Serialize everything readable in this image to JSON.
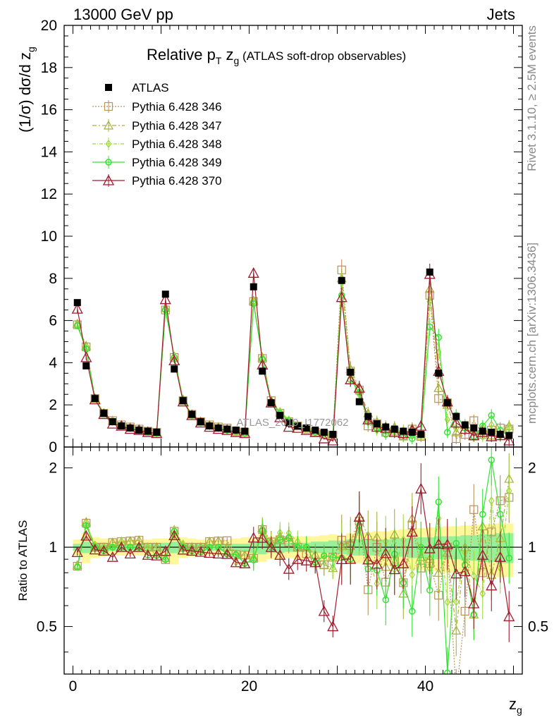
{
  "header": {
    "left": "13000 GeV pp",
    "right": "Jets"
  },
  "side": {
    "rivet": "Rivet 3.1.10, ≥ 2.5M events",
    "mcplots": "mcplots.cern.ch [arXiv:1306.3436]"
  },
  "watermark": "ATLAS_2019_I1772062",
  "colors": {
    "ATLAS": "#000000",
    "346": "#b8935a",
    "347": "#a6b03a",
    "348": "#a0d83a",
    "349": "#36e236",
    "370": "#a01c2e",
    "band_outer": "#fff799",
    "band_inner": "#99f099"
  },
  "chart_data": [
    {
      "type": "scatter",
      "title": {
        "main": "Relative p",
        "sub1": "T",
        "mid": " z",
        "sub2": "g",
        "rest": " (ATLAS soft-drop observables)"
      },
      "ylabel": "(1/σ) dσ/d z",
      "ylabel_sub": "g",
      "xlim": [
        -1,
        51
      ],
      "ylim": [
        0,
        20
      ],
      "yticks": [
        "0",
        "2",
        "4",
        "6",
        "8",
        "10",
        "12",
        "14",
        "16",
        "18",
        "20"
      ],
      "x": [
        0.5,
        1.5,
        2.5,
        3.5,
        4.5,
        5.5,
        6.5,
        7.5,
        8.5,
        9.5,
        10.5,
        11.5,
        12.5,
        13.5,
        14.5,
        15.5,
        16.5,
        17.5,
        18.5,
        19.5,
        20.5,
        21.5,
        22.5,
        23.5,
        24.5,
        25.5,
        26.5,
        27.5,
        28.5,
        29.5,
        30.5,
        31.5,
        32.5,
        33.5,
        34.5,
        35.5,
        36.5,
        37.5,
        38.5,
        39.5,
        40.5,
        41.5,
        42.5,
        43.5,
        44.5,
        45.5,
        46.5,
        47.5,
        48.5,
        49.5
      ],
      "series": [
        {
          "name": "ATLAS",
          "key": "ATLAS",
          "values": [
            6.85,
            3.85,
            2.3,
            1.6,
            1.2,
            1.0,
            0.9,
            0.8,
            0.75,
            0.7,
            7.25,
            3.7,
            2.2,
            1.55,
            1.2,
            1.0,
            0.9,
            0.85,
            0.8,
            0.75,
            7.6,
            3.6,
            2.1,
            1.5,
            1.15,
            1.0,
            0.9,
            0.8,
            0.7,
            0.6,
            7.9,
            3.55,
            2.15,
            1.45,
            1.1,
            0.95,
            0.85,
            0.75,
            0.7,
            0.6,
            8.3,
            3.5,
            2.1,
            1.45,
            1.05,
            0.9,
            0.75,
            0.7,
            0.6,
            0.55
          ]
        },
        {
          "name": "Pythia 6.428 346",
          "key": "346",
          "values": [
            5.8,
            4.75,
            2.3,
            1.6,
            1.25,
            1.05,
            0.95,
            0.85,
            0.75,
            0.7,
            6.5,
            4.25,
            2.2,
            1.55,
            1.2,
            1.05,
            0.95,
            0.9,
            0.75,
            0.7,
            6.9,
            4.2,
            2.2,
            1.6,
            1.2,
            1.0,
            0.85,
            0.7,
            0.6,
            0.55,
            8.4,
            3.6,
            2.7,
            1.0,
            1.1,
            0.7,
            0.75,
            0.55,
            0.85,
            0.5,
            7.2,
            2.3,
            2.1,
            0.4,
            0.6,
            1.25,
            0.6,
            0.8,
            0.9,
            0.85
          ]
        },
        {
          "name": "Pythia 6.428 347",
          "key": "347",
          "values": [
            5.85,
            4.8,
            2.3,
            1.6,
            1.25,
            1.05,
            0.95,
            0.85,
            0.75,
            0.7,
            6.6,
            4.3,
            2.25,
            1.55,
            1.2,
            1.05,
            0.95,
            0.85,
            0.75,
            0.7,
            6.95,
            4.25,
            2.2,
            1.65,
            1.25,
            1.0,
            0.9,
            0.75,
            0.6,
            0.5,
            8.0,
            3.7,
            2.8,
            1.6,
            1.2,
            0.8,
            0.95,
            0.5,
            0.9,
            0.55,
            7.5,
            2.8,
            2.0,
            0.7,
            1.05,
            0.5,
            0.9,
            0.55,
            0.65,
            1.0
          ]
        },
        {
          "name": "Pythia 6.428 348",
          "key": "348",
          "values": [
            5.8,
            4.7,
            2.35,
            1.6,
            1.2,
            1.05,
            0.9,
            0.8,
            0.75,
            0.65,
            6.6,
            4.3,
            2.25,
            1.5,
            1.15,
            1.0,
            0.9,
            0.8,
            0.7,
            0.65,
            6.9,
            4.2,
            2.15,
            1.7,
            1.3,
            1.05,
            0.9,
            0.7,
            0.65,
            0.5,
            7.8,
            3.4,
            2.5,
            1.3,
            0.8,
            1.0,
            0.7,
            0.8,
            0.55,
            0.6,
            6.9,
            4.5,
            1.3,
            0.9,
            1.0,
            0.7,
            0.5,
            1.05,
            0.5,
            0.9
          ]
        },
        {
          "name": "Pythia 6.428 349",
          "key": "349",
          "values": [
            5.75,
            4.65,
            2.3,
            1.55,
            1.2,
            1.0,
            0.9,
            0.8,
            0.7,
            0.65,
            6.5,
            4.25,
            2.2,
            1.5,
            1.15,
            1.0,
            0.9,
            0.8,
            0.75,
            0.65,
            6.8,
            4.15,
            2.1,
            1.6,
            1.25,
            1.0,
            0.9,
            0.7,
            0.65,
            0.55,
            7.2,
            3.2,
            2.6,
            1.2,
            0.9,
            0.6,
            0.8,
            0.55,
            0.4,
            0.6,
            5.7,
            5.2,
            0.7,
            1.5,
            0.9,
            0.5,
            1.0,
            1.5,
            0.8,
            0.5
          ]
        },
        {
          "name": "Pythia 6.428 370",
          "key": "370",
          "values": [
            6.55,
            4.25,
            2.25,
            1.55,
            1.1,
            1.0,
            0.85,
            0.8,
            0.7,
            0.65,
            7.0,
            4.1,
            2.15,
            1.5,
            1.15,
            0.95,
            0.85,
            0.8,
            0.7,
            0.65,
            8.25,
            3.9,
            2.1,
            1.4,
            0.95,
            0.9,
            0.8,
            0.7,
            0.4,
            0.3,
            7.1,
            3.2,
            2.8,
            1.3,
            0.95,
            0.9,
            0.7,
            0.65,
            0.8,
            1.0,
            8.2,
            3.6,
            2.15,
            1.15,
            0.85,
            0.55,
            0.7,
            0.5,
            0.55,
            0.3
          ]
        }
      ]
    },
    {
      "type": "scatter",
      "ylabel": "Ratio to ATLAS",
      "xlabel": "z",
      "xlabel_sub": "g",
      "xlim": [
        -1,
        51
      ],
      "ylim": [
        0.33,
        2.4
      ],
      "log_y": true,
      "yticks": [
        "0.5",
        "1",
        "2"
      ],
      "xticks": [
        "0",
        "20",
        "40"
      ],
      "band_inner": [
        0.03,
        0.05,
        0.04,
        0.04,
        0.03,
        0.03,
        0.03,
        0.03,
        0.03,
        0.03,
        0.04,
        0.05,
        0.04,
        0.03,
        0.03,
        0.03,
        0.03,
        0.03,
        0.03,
        0.03,
        0.05,
        0.06,
        0.05,
        0.05,
        0.04,
        0.04,
        0.04,
        0.05,
        0.05,
        0.06,
        0.06,
        0.07,
        0.07,
        0.07,
        0.07,
        0.07,
        0.08,
        0.08,
        0.09,
        0.09,
        0.09,
        0.1,
        0.1,
        0.1,
        0.11,
        0.11,
        0.12,
        0.12,
        0.13,
        0.13
      ],
      "band_outer": [
        0.07,
        0.13,
        0.09,
        0.08,
        0.07,
        0.07,
        0.07,
        0.07,
        0.07,
        0.08,
        0.08,
        0.14,
        0.09,
        0.08,
        0.07,
        0.07,
        0.07,
        0.07,
        0.08,
        0.09,
        0.09,
        0.12,
        0.1,
        0.1,
        0.09,
        0.1,
        0.1,
        0.1,
        0.11,
        0.12,
        0.11,
        0.13,
        0.13,
        0.14,
        0.15,
        0.15,
        0.16,
        0.17,
        0.18,
        0.18,
        0.19,
        0.19,
        0.2,
        0.2,
        0.21,
        0.21,
        0.22,
        0.22,
        0.23,
        0.23
      ]
    }
  ]
}
